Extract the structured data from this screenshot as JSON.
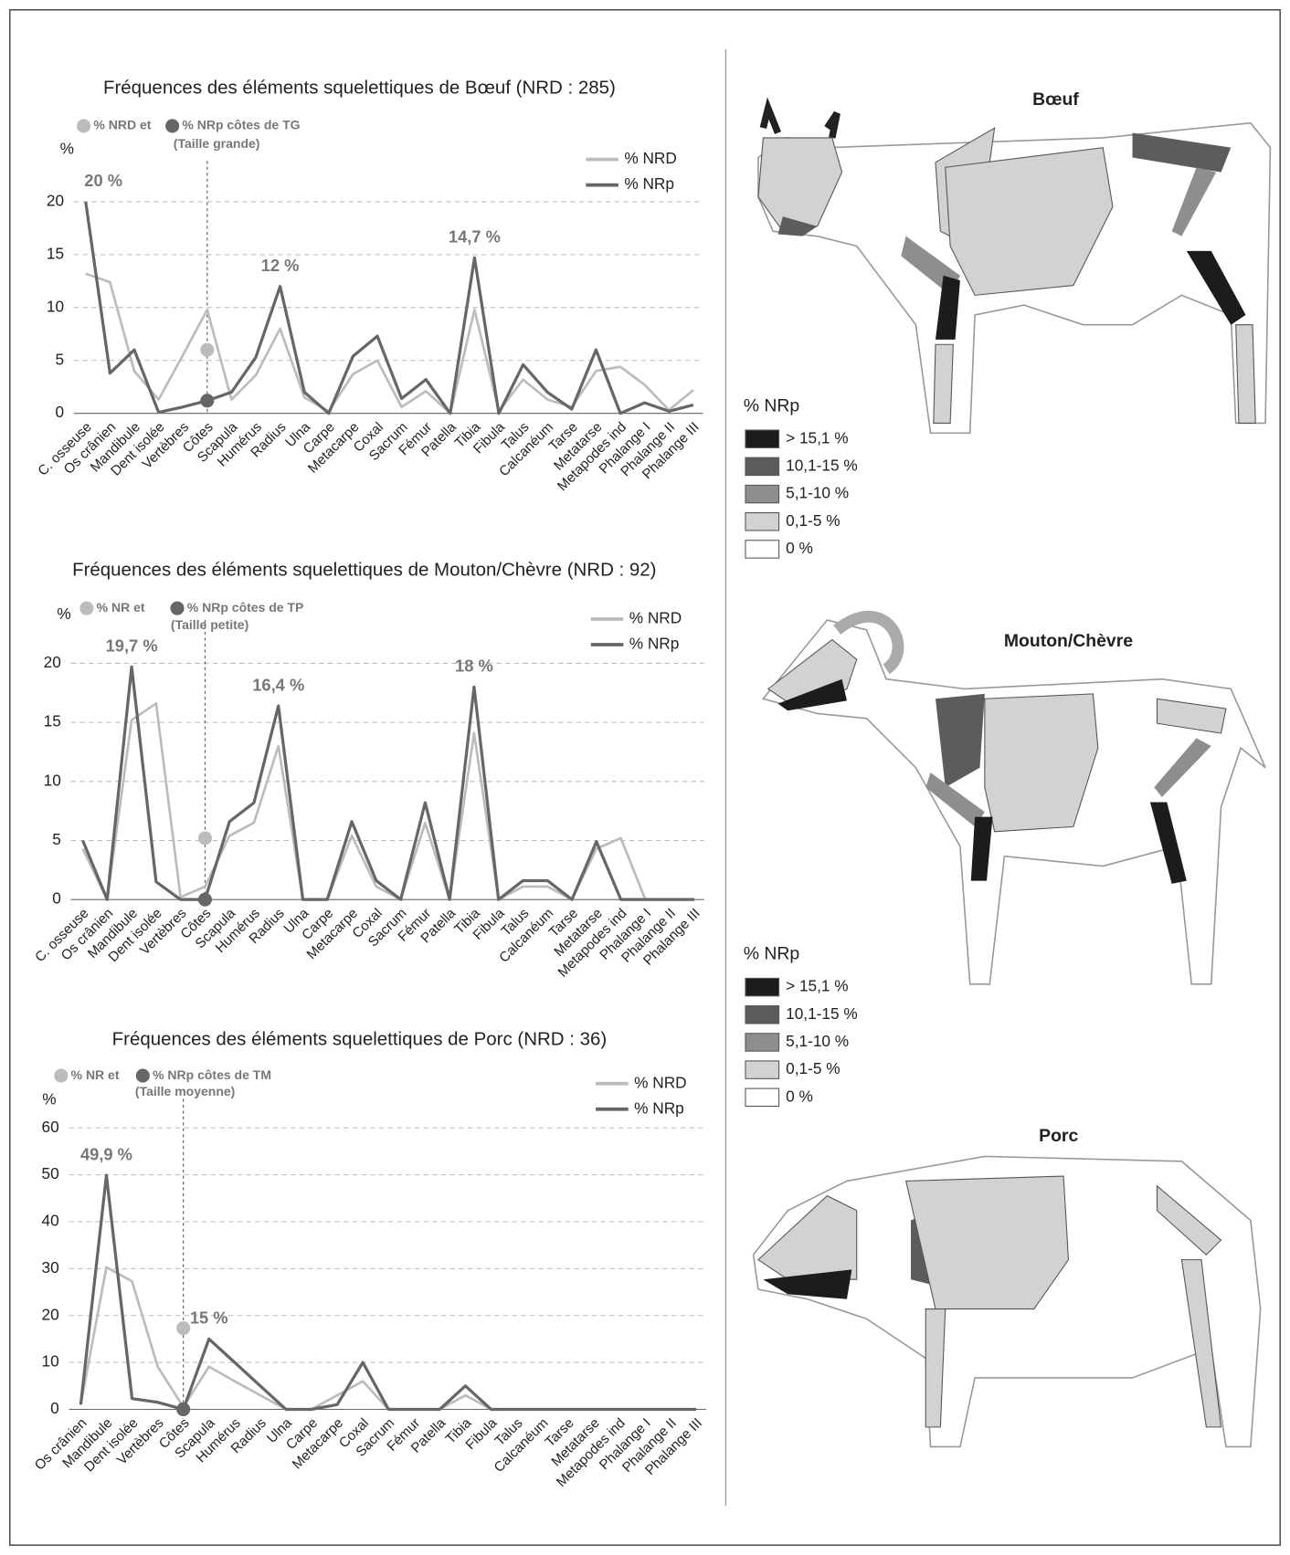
{
  "chart_data": [
    {
      "type": "line",
      "title": "Fréquences des éléments squelettiques de Bœuf (NRD : 285)",
      "y_label": "%",
      "categories": [
        "C. osseuse",
        "Os crânien",
        "Mandibule",
        "Dent isolée",
        "Vertèbres",
        "Côtes",
        "Scapula",
        "Humérus",
        "Radius",
        "Ulna",
        "Carpe",
        "Metacarpe",
        "Coxal",
        "Sacrum",
        "Fémur",
        "Patella",
        "Tibia",
        "Fibula",
        "Talus",
        "Calcanéum",
        "Tarse",
        "Metatarse",
        "Metapodes ind",
        "Phalange I",
        "Phalange II",
        "Phalange III"
      ],
      "series": [
        {
          "name": "% NRD",
          "color": "#bcbcbc",
          "values": [
            13.2,
            12.4,
            4,
            1.3,
            5.5,
            9.8,
            1.3,
            3.6,
            8,
            1.5,
            0.2,
            3.7,
            5,
            0.6,
            2.1,
            0,
            9.8,
            0.2,
            3.2,
            1.3,
            0.6,
            4,
            4.4,
            2.7,
            0.3,
            2.2
          ]
        },
        {
          "name": "% NRp",
          "color": "#666666",
          "values": [
            20,
            3.8,
            6,
            0.1,
            0.6,
            1.2,
            2,
            5.3,
            12,
            2,
            0,
            5.4,
            7.3,
            1.4,
            3.2,
            0,
            14.7,
            0,
            4.6,
            2,
            0.4,
            6,
            0,
            1,
            0.2,
            0.8
          ],
          "value_labels": [
            "20 %",
            null,
            null,
            null,
            null,
            null,
            null,
            null,
            "12 %",
            null,
            null,
            null,
            null,
            null,
            null,
            null,
            "14,7 %",
            null,
            null,
            null,
            null,
            null,
            null,
            null,
            null,
            null
          ]
        }
      ],
      "rib_points": {
        "category": "Côtes",
        "label_parts": [
          "% NRD et",
          "% NRp côtes de TG"
        ],
        "note": "(Taille grande)",
        "values": [
          6,
          1.2
        ]
      },
      "ylim": [
        0,
        22
      ],
      "yticks": [
        0,
        5,
        10,
        15,
        20
      ],
      "grid": true,
      "legend": "upper right"
    },
    {
      "type": "line",
      "title": "Fréquences des éléments squelettiques de Mouton/Chèvre (NRD : 92)",
      "y_label": "%",
      "categories": [
        "C. osseuse",
        "Os crânien",
        "Mandibule",
        "Dent isolée",
        "Vertèbres",
        "Côtes",
        "Scapula",
        "Humérus",
        "Radius",
        "Ulna",
        "Carpe",
        "Metacarpe",
        "Coxal",
        "Sacrum",
        "Fémur",
        "Patella",
        "Tibia",
        "Fibula",
        "Talus",
        "Calcanéum",
        "Tarse",
        "Metatarse",
        "Metapodes ind",
        "Phalange I",
        "Phalange II",
        "Phalange III"
      ],
      "series": [
        {
          "name": "% NRD",
          "color": "#bcbcbc",
          "values": [
            4.3,
            0,
            15.2,
            16.6,
            0.2,
            1.1,
            5.4,
            6.5,
            13,
            0,
            0,
            5.4,
            1.1,
            0,
            6.5,
            0,
            14.1,
            0,
            1.1,
            1.1,
            0,
            4.3,
            5.2,
            0,
            0,
            0
          ]
        },
        {
          "name": "% NRp",
          "color": "#666666",
          "values": [
            5,
            0,
            19.7,
            1.5,
            0,
            0,
            6.6,
            8.2,
            16.4,
            0,
            0,
            6.6,
            1.6,
            0,
            8.2,
            0,
            18,
            0,
            1.6,
            1.6,
            0,
            4.9,
            0,
            0,
            0,
            0
          ],
          "value_labels": [
            null,
            null,
            "19,7 %",
            null,
            null,
            null,
            null,
            null,
            "16,4 %",
            null,
            null,
            null,
            null,
            null,
            null,
            null,
            "18 %",
            null,
            null,
            null,
            null,
            null,
            null,
            null,
            null,
            null
          ]
        }
      ],
      "rib_points": {
        "category": "Côtes",
        "label_parts": [
          "% NR et",
          "% NRp côtes de TP"
        ],
        "note": "(Taille petite)",
        "values": [
          5.2,
          0
        ]
      },
      "ylim": [
        0,
        22
      ],
      "yticks": [
        0,
        5,
        10,
        15,
        20
      ],
      "grid": true,
      "legend": "upper right"
    },
    {
      "type": "line",
      "title": "Fréquences des éléments squelettiques de Porc (NRD : 36)",
      "y_label": "%",
      "categories": [
        "Os crânien",
        "Mandibule",
        "Dent isolée",
        "Vertèbres",
        "Côtes",
        "Scapula",
        "Humérus",
        "Radius",
        "Ulna",
        "Carpe",
        "Metacarpe",
        "Coxal",
        "Sacrum",
        "Fémur",
        "Patella",
        "Tibia",
        "Fibula",
        "Talus",
        "Calcanéum",
        "Tarse",
        "Metatarse",
        "Metapodes ind",
        "Phalange I",
        "Phalange II",
        "Phalange III"
      ],
      "series": [
        {
          "name": "% NRD",
          "color": "#bcbcbc",
          "values": [
            1,
            30.3,
            27.3,
            9.1,
            0.5,
            9.1,
            6,
            3,
            0,
            0,
            3,
            6,
            0,
            0,
            0,
            3,
            0,
            0,
            0,
            0,
            0,
            0,
            0,
            0,
            0
          ]
        },
        {
          "name": "% NRp",
          "color": "#666666",
          "values": [
            1,
            49.9,
            2.3,
            1.5,
            0,
            15,
            10,
            5,
            0,
            0,
            1,
            10,
            0,
            0,
            0,
            5,
            0,
            0,
            0,
            0,
            0,
            0,
            0,
            0,
            0
          ],
          "value_labels": [
            null,
            "49,9 %",
            null,
            null,
            null,
            "15 %",
            null,
            null,
            null,
            null,
            null,
            null,
            null,
            null,
            null,
            null,
            null,
            null,
            null,
            null,
            null,
            null,
            null,
            null,
            null
          ]
        }
      ],
      "rib_points": {
        "category": "Côtes",
        "label_parts": [
          "% NR et",
          "% NRp côtes de TM"
        ],
        "note": "(Taille moyenne)",
        "values": [
          17.3,
          0
        ]
      },
      "ylim": [
        0,
        62
      ],
      "yticks": [
        0,
        10,
        20,
        30,
        40,
        50,
        60
      ],
      "grid": true,
      "legend": "upper right"
    }
  ],
  "illustrations": [
    {
      "title": "Bœuf",
      "legend": {
        "title": "% NRp",
        "entries": [
          {
            "label": "> 15,1 %",
            "color": "#1c1c1c"
          },
          {
            "label": "10,1-15 %",
            "color": "#5c5c5c"
          },
          {
            "label": "5,1-10 %",
            "color": "#8e8e8e"
          },
          {
            "label": "0,1-5 %",
            "color": "#d2d2d2"
          },
          {
            "label": "0 %",
            "color": "#ffffff"
          }
        ]
      }
    },
    {
      "title": "Mouton/Chèvre",
      "legend": {
        "title": "% NRp",
        "entries": [
          {
            "label": "> 15,1 %",
            "color": "#1c1c1c"
          },
          {
            "label": "10,1-15 %",
            "color": "#5c5c5c"
          },
          {
            "label": "5,1-10 %",
            "color": "#8e8e8e"
          },
          {
            "label": "0,1-5 %",
            "color": "#d2d2d2"
          },
          {
            "label": "0 %",
            "color": "#ffffff"
          }
        ]
      }
    },
    {
      "title": "Porc"
    }
  ]
}
